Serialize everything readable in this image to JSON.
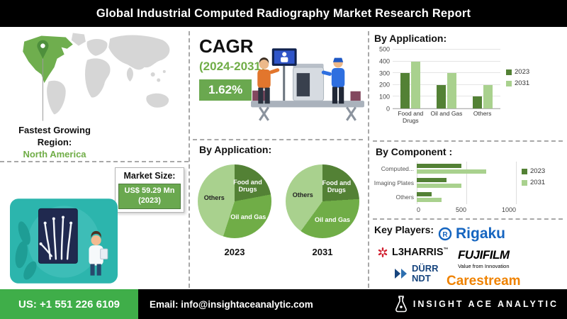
{
  "header": {
    "title": "Global Industrial Computed Radiography Market Research Report"
  },
  "map_section": {
    "fastest_growing_label": "Fastest Growing Region:",
    "fastest_growing_region": "North America",
    "market_size_label": "Market Size:",
    "market_size_value": "US$ 59.29 Mn",
    "market_size_year": "(2023)"
  },
  "cagr_section": {
    "label": "CAGR",
    "period": "(2024-2031)",
    "value": "1.62%"
  },
  "pie_section": {
    "title": "By Application:"
  },
  "key_players": {
    "title": "Key Players:",
    "rigaku": "Rigaku",
    "l3harris": "L3HARRIS",
    "l3harris_tm": "™",
    "fujifilm": "FUJIFILM",
    "fujifilm_tagline": "Value from Innovation",
    "durr_line1": "DÜRR",
    "durr_line2": "NDT",
    "carestream": "Carestream"
  },
  "footer": {
    "phone": "US: +1 551 226 6109",
    "email": "Email: info@insightaceanalytic.com",
    "brand": "INSIGHT ACE ANALYTIC"
  },
  "colors": {
    "dark_green": "#538135",
    "mid_green": "#70ad47",
    "light_green": "#a9d18e",
    "badge_green": "#6aa84f",
    "footer_green": "#3fae49",
    "teal": "#2cb5ad"
  },
  "chart_data": [
    {
      "id": "application-bar",
      "type": "bar",
      "title": "By Application:",
      "categories": [
        "Food and Drugs",
        "Oil and Gas",
        "Others"
      ],
      "series": [
        {
          "name": "2023",
          "color": "#538135",
          "values": [
            300,
            200,
            100
          ]
        },
        {
          "name": "2031",
          "color": "#a9d18e",
          "values": [
            400,
            300,
            200
          ]
        }
      ],
      "ylim": [
        0,
        500
      ],
      "yticks": [
        0,
        100,
        200,
        300,
        400,
        500
      ],
      "legend_position": "right",
      "grid": true
    },
    {
      "id": "application-pie-2023",
      "type": "pie",
      "year_label": "2023",
      "slices": [
        {
          "label": "Food and Drugs",
          "value": 22,
          "color": "#538135",
          "text_color": "#ffffff"
        },
        {
          "label": "Oil and Gas",
          "value": 33,
          "color": "#70ad47",
          "text_color": "#ffffff"
        },
        {
          "label": "Others",
          "value": 45,
          "color": "#a9d18e",
          "text_color": "#222222"
        }
      ]
    },
    {
      "id": "application-pie-2031",
      "type": "pie",
      "year_label": "2031",
      "slices": [
        {
          "label": "Food and Drugs",
          "value": 24,
          "color": "#538135",
          "text_color": "#ffffff"
        },
        {
          "label": "Oil and Gas",
          "value": 36,
          "color": "#70ad47",
          "text_color": "#ffffff"
        },
        {
          "label": "Others",
          "value": 40,
          "color": "#a9d18e",
          "text_color": "#222222"
        }
      ]
    },
    {
      "id": "component-bar",
      "type": "bar",
      "orientation": "horizontal",
      "title": "By Component :",
      "categories": [
        "Computed...",
        "Imaging Plates",
        "Others"
      ],
      "series": [
        {
          "name": "2023",
          "color": "#538135",
          "values": [
            450,
            300,
            150
          ]
        },
        {
          "name": "2031",
          "color": "#a9d18e",
          "values": [
            700,
            450,
            250
          ]
        }
      ],
      "xlim": [
        0,
        1000
      ],
      "xticks": [
        0,
        500,
        1000
      ],
      "legend_position": "right",
      "grid": true
    }
  ]
}
